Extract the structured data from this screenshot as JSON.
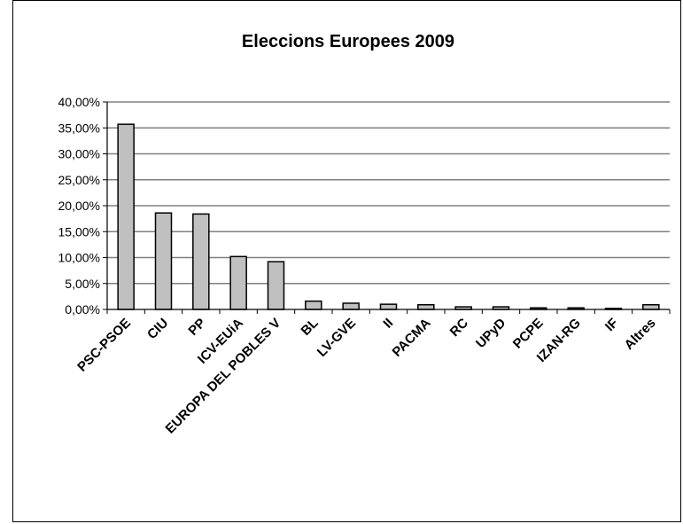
{
  "chart_data": {
    "type": "bar",
    "title": "Eleccions Europees 2009",
    "categories": [
      "PSC-PSOE",
      "CIU",
      "PP",
      "ICV-EUiA",
      "EUROPA DEL POBLES V",
      "BL",
      "LV-GVE",
      "II",
      "PACMA",
      "RC",
      "UPyD",
      "PCPE",
      "IZAN-RG",
      "IF",
      "Altres"
    ],
    "values": [
      35.7,
      18.6,
      18.4,
      10.2,
      9.2,
      1.6,
      1.2,
      1.0,
      0.9,
      0.5,
      0.5,
      0.3,
      0.3,
      0.2,
      0.9
    ],
    "ylim": [
      0,
      40
    ],
    "y_ticks": [
      "0,00%",
      "5,00%",
      "10,00%",
      "15,00%",
      "20,00%",
      "25,00%",
      "30,00%",
      "35,00%",
      "40,00%"
    ],
    "grid": true,
    "xlabel": "",
    "ylabel": "",
    "bar_color": "#c0c0c0",
    "bar_edge": "#000000",
    "grid_color": "#808080"
  }
}
